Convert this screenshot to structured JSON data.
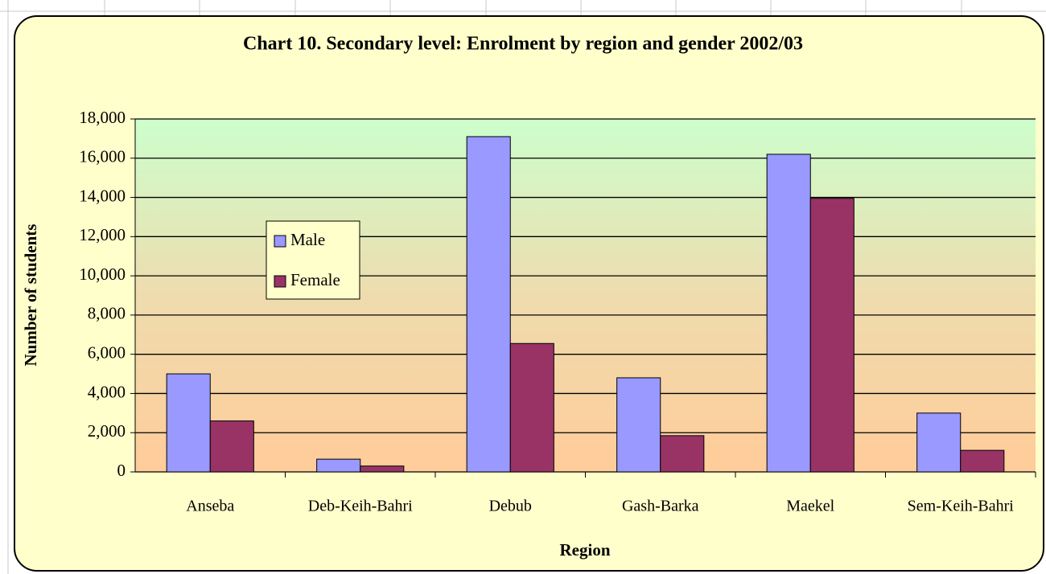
{
  "chart_data": {
    "type": "bar",
    "title": "Chart 10. Secondary level: Enrolment by region and gender 2002/03",
    "x_label": "Region",
    "y_label": "Number of students",
    "categories": [
      "Anseba",
      "Deb-Keih-Bahri",
      "Debub",
      "Gash-Barka",
      "Maekel",
      "Sem-Keih-Bahri"
    ],
    "series": [
      {
        "name": "Male",
        "color": "#9999ff",
        "values": [
          5000,
          650,
          17100,
          4800,
          16200,
          3000
        ]
      },
      {
        "name": "Female",
        "color": "#993366",
        "values": [
          2600,
          300,
          6550,
          1850,
          13950,
          1100
        ]
      }
    ],
    "ylim": [
      0,
      18000
    ],
    "yticks": [
      0,
      {
        "value": 2000,
        "label": "2,000"
      },
      {
        "value": 4000,
        "label": "4,000"
      },
      {
        "value": 6000,
        "label": "6,000"
      },
      {
        "value": 8000,
        "label": "8,000"
      },
      {
        "value": 10000,
        "label": "10,000"
      },
      {
        "value": 12000,
        "label": "12,000"
      },
      {
        "value": 14000,
        "label": "14,000"
      },
      {
        "value": 16000,
        "label": "16,000"
      },
      {
        "value": 18000,
        "label": "18,000"
      }
    ],
    "grid": true
  }
}
